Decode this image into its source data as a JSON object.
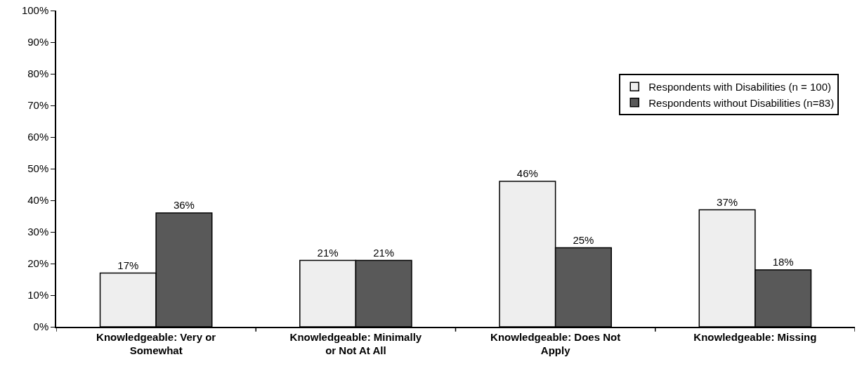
{
  "chart_data": {
    "type": "bar",
    "categories": [
      "Knowledgeable: Very or Somewhat",
      "Knowledgeable: Minimally or Not At All",
      "Knowledgeable: Does Not Apply",
      "Knowledgeable: Missing"
    ],
    "series": [
      {
        "name": "Respondents with Disabilities (n = 100)",
        "color": "#eeeeee",
        "values": [
          17,
          21,
          46,
          37
        ],
        "value_labels": [
          "17%",
          "21%",
          "46%",
          "37%"
        ]
      },
      {
        "name": "Respondents without Disabilities (n=83)",
        "color": "#595959",
        "values": [
          36,
          21,
          25,
          18
        ],
        "value_labels": [
          "36%",
          "21%",
          "25%",
          "18%"
        ]
      }
    ],
    "ylim": [
      0,
      100
    ],
    "yticks": [
      {
        "value": 0,
        "label": "0%"
      },
      {
        "value": 10,
        "label": "10%"
      },
      {
        "value": 20,
        "label": "20%"
      },
      {
        "value": 30,
        "label": "30%"
      },
      {
        "value": 40,
        "label": "40%"
      },
      {
        "value": 50,
        "label": "50%"
      },
      {
        "value": 60,
        "label": "60%"
      },
      {
        "value": 70,
        "label": "70%"
      },
      {
        "value": 80,
        "label": "80%"
      },
      {
        "value": 90,
        "label": "90%"
      },
      {
        "value": 100,
        "label": "100%"
      }
    ],
    "grid": false,
    "legend": "top right"
  }
}
